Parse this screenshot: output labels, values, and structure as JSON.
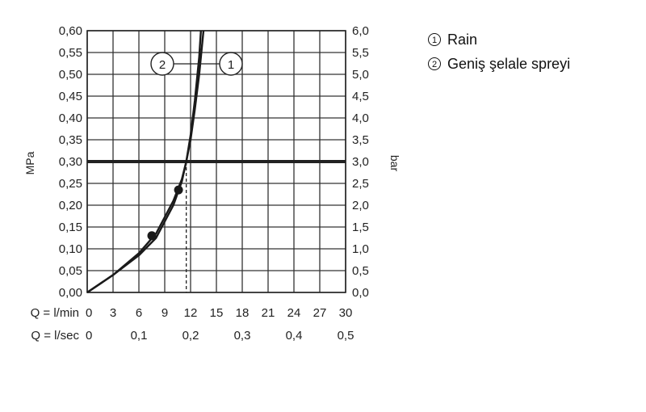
{
  "chart_data": {
    "type": "line",
    "title": "",
    "xlabel": "",
    "x_axis_rows": [
      {
        "prefix": "Q = l/min",
        "ticks": [
          "0",
          "3",
          "6",
          "9",
          "12",
          "15",
          "18",
          "21",
          "24",
          "27",
          "30"
        ]
      },
      {
        "prefix": "Q = l/sec",
        "ticks": [
          "0",
          "0,1",
          "0,2",
          "0,3",
          "0,4",
          "0,5"
        ]
      }
    ],
    "xlim": [
      0,
      30
    ],
    "ylim": [
      0,
      0.6
    ],
    "y_left": {
      "label": "MPa",
      "ticks": [
        "0,00",
        "0,05",
        "0,10",
        "0,15",
        "0,20",
        "0,25",
        "0,30",
        "0,35",
        "0,40",
        "0,45",
        "0,50",
        "0,55",
        "0,60"
      ]
    },
    "y_right": {
      "label": "bar",
      "ticks": [
        "0,0",
        "0,5",
        "1,0",
        "1,5",
        "2,0",
        "2,5",
        "3,0",
        "3,5",
        "4,0",
        "4,5",
        "5,0",
        "5,5",
        "6,0"
      ]
    },
    "grid": true,
    "reference_line": {
      "y": 0.3
    },
    "dashed_marker": {
      "x": 11.5
    },
    "series": [
      {
        "name": "Rain",
        "marker_label": "1",
        "x": [
          0,
          3,
          6,
          8,
          10,
          11,
          11.5,
          12,
          12.5,
          13,
          13.5
        ],
        "y": [
          0,
          0.04,
          0.09,
          0.135,
          0.21,
          0.26,
          0.3,
          0.35,
          0.42,
          0.5,
          0.6
        ],
        "points": [
          {
            "x": 10.6,
            "y": 0.235
          }
        ]
      },
      {
        "name": "Geniş şelale spreyi",
        "marker_label": "2",
        "x": [
          0,
          3,
          6,
          8,
          10,
          11,
          11.5,
          12,
          12.5,
          13,
          13.2
        ],
        "y": [
          0,
          0.04,
          0.085,
          0.125,
          0.2,
          0.255,
          0.3,
          0.36,
          0.44,
          0.54,
          0.6
        ],
        "points": [
          {
            "x": 7.5,
            "y": 0.13
          }
        ]
      }
    ],
    "legend": {
      "position": "top-right"
    }
  }
}
